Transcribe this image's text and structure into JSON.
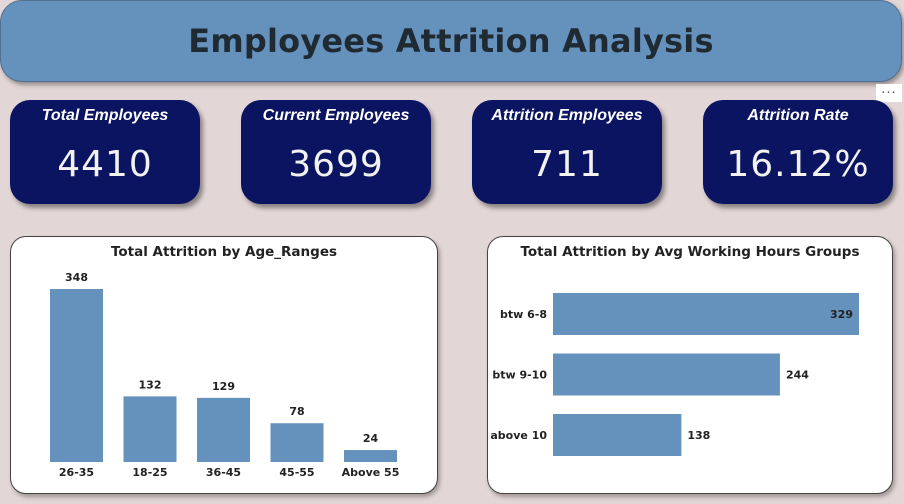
{
  "dashboard": {
    "title": "Employees Attrition Analysis",
    "more_options": "..."
  },
  "kpis": [
    {
      "label": "Total Employees",
      "value": "4410"
    },
    {
      "label": "Current Employees",
      "value": "3699"
    },
    {
      "label": "Attrition Employees",
      "value": "711"
    },
    {
      "label": "Attrition Rate",
      "value": "16.12%"
    }
  ],
  "colors": {
    "background": "#e3d6d6",
    "header": "#6592bd",
    "kpi_card": "#0b1461",
    "bar": "#6592bd"
  },
  "chart_data": [
    {
      "type": "bar",
      "title": "Total Attrition by Age_Ranges",
      "orientation": "vertical",
      "categories": [
        "26-35",
        "18-25",
        "36-45",
        "45-55",
        "Above 55"
      ],
      "values": [
        348,
        132,
        129,
        78,
        24
      ],
      "data_labels": true,
      "xlabel": "",
      "ylabel": "",
      "ylim": [
        0,
        348
      ],
      "grid": false
    },
    {
      "type": "bar",
      "title": "Total Attrition by Avg Working Hours Groups",
      "orientation": "horizontal",
      "categories": [
        "btw 6-8",
        "btw 9-10",
        "above 10"
      ],
      "values": [
        329,
        244,
        138
      ],
      "data_labels": true,
      "xlabel": "",
      "ylabel": "",
      "xlim": [
        0,
        329
      ],
      "grid": false
    }
  ]
}
